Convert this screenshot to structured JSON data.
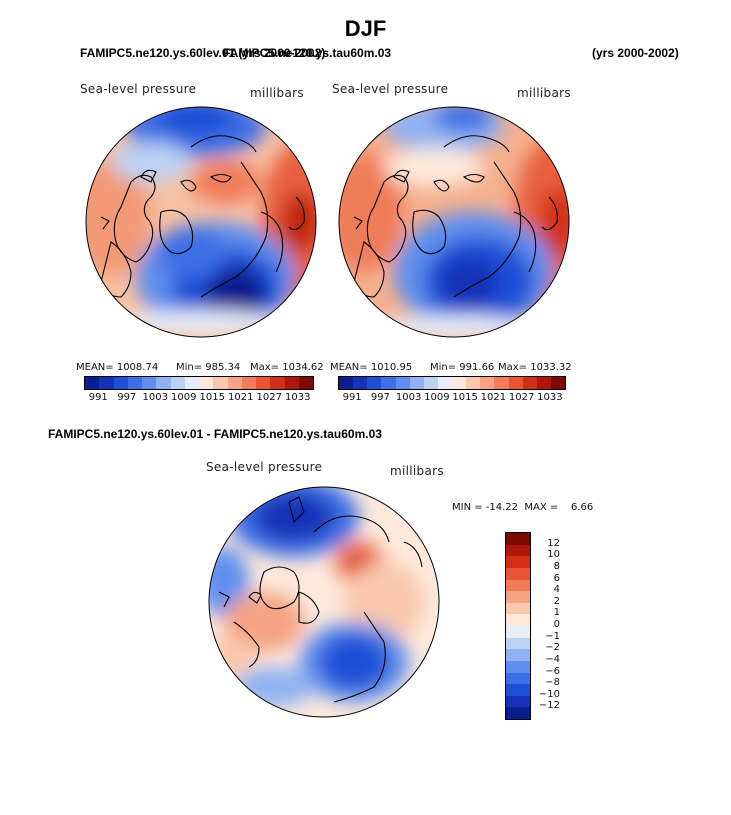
{
  "title": "DJF",
  "header": {
    "left_case": "FAMIPC5.ne120.ys.60lev.01 (yrs 2000-2002)",
    "right_case": "FAMIPC5.ne120.ys.tau60m.03",
    "right_years": "(yrs 2000-2002)"
  },
  "variable": "Sea-level pressure",
  "units": "millibars",
  "panel_left": {
    "mean": "MEAN= 1008.74",
    "min": "Min= 985.34",
    "max": "Max= 1034.62"
  },
  "panel_right": {
    "mean": "MEAN= 1010.95",
    "min": "Min= 991.66",
    "max": "Max= 1033.32"
  },
  "colorbar_ticks": [
    "991",
    "997",
    "1003",
    "1009",
    "1015",
    "1021",
    "1027",
    "1033"
  ],
  "colorbar_colors": [
    "#0a1f8f",
    "#1532b8",
    "#1f4fd6",
    "#3d6fe6",
    "#5f8fee",
    "#8fb2f2",
    "#bcd2f5",
    "#e6eefa",
    "#fde9dc",
    "#f9c8ad",
    "#f5a382",
    "#f07c59",
    "#e85434",
    "#d23016",
    "#ad1608",
    "#7a0a02"
  ],
  "diff": {
    "title": "FAMIPC5.ne120.ys.60lev.01 - FAMIPC5.ne120.ys.tau60m.03",
    "stats": "MIN = -14.22  MAX =    6.66",
    "ticks": [
      "12",
      "10",
      "8",
      "6",
      "4",
      "2",
      "1",
      "0",
      "−1",
      "−2",
      "−4",
      "−6",
      "−8",
      "−10",
      "−12"
    ],
    "colors": [
      "#7a0a02",
      "#ad1608",
      "#d23016",
      "#e85434",
      "#f07c59",
      "#f5a382",
      "#f9c8ad",
      "#fde9dc",
      "#e6eefa",
      "#bcd2f5",
      "#8fb2f2",
      "#5f8fee",
      "#3d6fe6",
      "#1f4fd6",
      "#1532b8",
      "#0a1f8f"
    ]
  }
}
